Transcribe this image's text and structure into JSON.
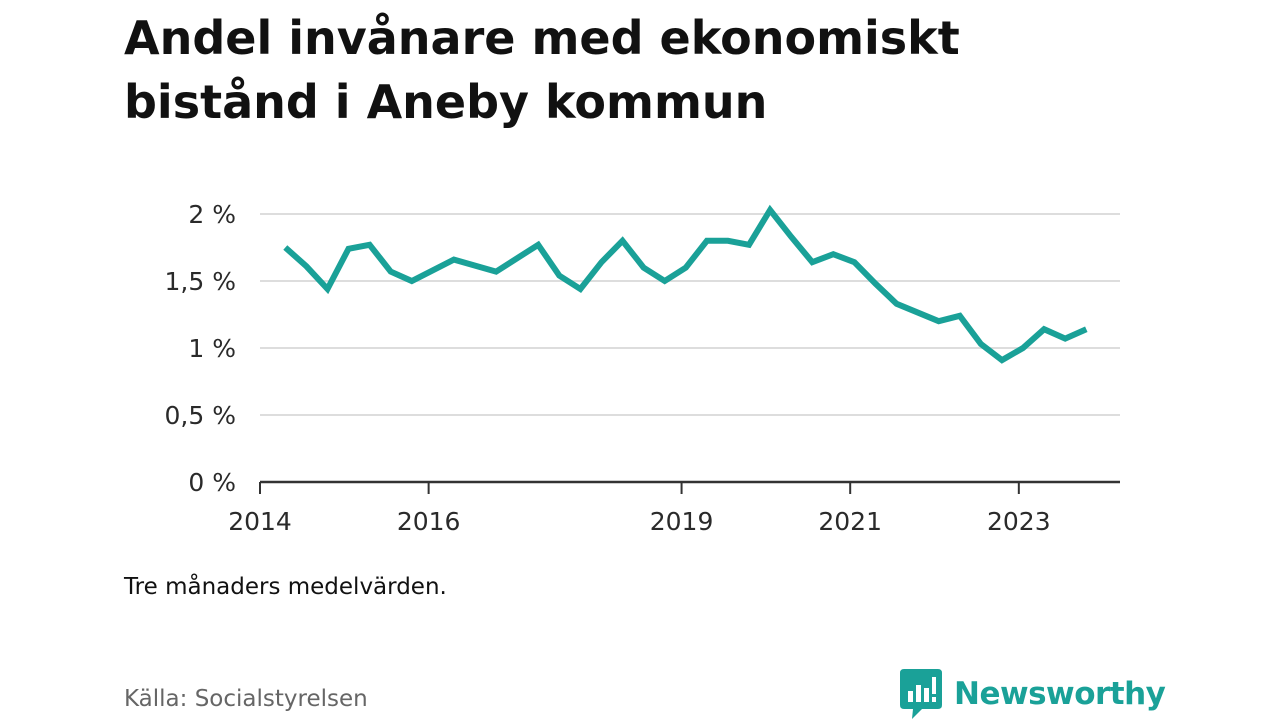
{
  "title": "Andel invånare med ekonomiskt bistånd i Aneby kommun",
  "note": "Tre månaders medelvärden.",
  "source": "Källa: Socialstyrelsen",
  "brand": {
    "name": "Newsworthy",
    "icon": "newsworthy-logo-icon"
  },
  "colors": {
    "line": "#1aa198",
    "grid": "#dddddd",
    "axis": "#333333"
  },
  "chart_data": {
    "type": "line",
    "title": "Andel invånare med ekonomiskt bistånd i Aneby kommun",
    "xlabel": "",
    "ylabel": "",
    "ylim": [
      0,
      2
    ],
    "yticks": [
      0,
      0.5,
      1,
      1.5,
      2
    ],
    "ytick_labels": [
      "0 %",
      "0,5 %",
      "1 %",
      "1,5 %",
      "2 %"
    ],
    "xlim": [
      2014.0,
      2024.2
    ],
    "xticks": [
      2014,
      2016,
      2019,
      2021,
      2023
    ],
    "xtick_labels": [
      "2014",
      "2016",
      "2019",
      "2021",
      "2023"
    ],
    "grid": true,
    "series": [
      {
        "name": "Andel invånare med ekonomiskt bistånd",
        "x": [
          2014.3,
          2014.55,
          2014.8,
          2015.05,
          2015.3,
          2015.55,
          2015.8,
          2016.3,
          2016.8,
          2017.3,
          2017.55,
          2017.8,
          2018.05,
          2018.3,
          2018.55,
          2018.8,
          2019.05,
          2019.3,
          2019.55,
          2019.8,
          2020.05,
          2020.3,
          2020.55,
          2020.8,
          2021.05,
          2021.3,
          2021.55,
          2022.05,
          2022.3,
          2022.55,
          2022.8,
          2023.05,
          2023.3,
          2023.55,
          2023.8
        ],
        "values": [
          1.75,
          1.61,
          1.44,
          1.74,
          1.77,
          1.57,
          1.5,
          1.66,
          1.57,
          1.77,
          1.54,
          1.44,
          1.64,
          1.8,
          1.6,
          1.5,
          1.6,
          1.8,
          1.8,
          1.77,
          2.03,
          1.83,
          1.64,
          1.7,
          1.64,
          1.48,
          1.33,
          1.2,
          1.24,
          1.03,
          0.91,
          1.0,
          1.14,
          1.07,
          1.14
        ]
      }
    ]
  }
}
